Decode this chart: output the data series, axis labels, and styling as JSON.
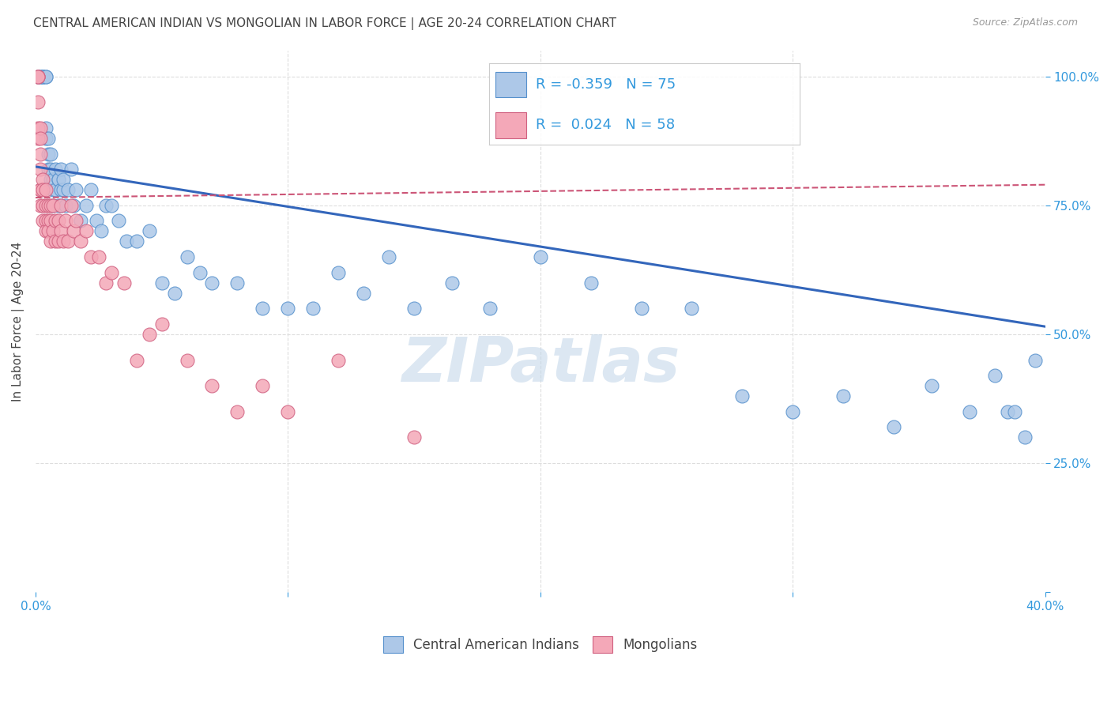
{
  "title": "CENTRAL AMERICAN INDIAN VS MONGOLIAN IN LABOR FORCE | AGE 20-24 CORRELATION CHART",
  "source": "Source: ZipAtlas.com",
  "ylabel": "In Labor Force | Age 20-24",
  "xlim": [
    0.0,
    0.4
  ],
  "ylim": [
    0.0,
    1.05
  ],
  "yticks": [
    0.0,
    0.25,
    0.5,
    0.75,
    1.0
  ],
  "ytick_labels": [
    "",
    "25.0%",
    "50.0%",
    "75.0%",
    "100.0%"
  ],
  "xticks": [
    0.0,
    0.1,
    0.2,
    0.3,
    0.4
  ],
  "xtick_labels": [
    "0.0%",
    "",
    "",
    "",
    "40.0%"
  ],
  "blue_R": -0.359,
  "blue_N": 75,
  "pink_R": 0.024,
  "pink_N": 58,
  "blue_color": "#adc8e8",
  "pink_color": "#f4a8b8",
  "blue_edge_color": "#5590cc",
  "pink_edge_color": "#d06080",
  "blue_line_color": "#3366bb",
  "pink_line_color": "#cc5577",
  "grid_color": "#dddddd",
  "grid_style": "--",
  "title_color": "#444444",
  "axis_label_color": "#444444",
  "tick_color": "#3399dd",
  "watermark_color": "#c5d8ea",
  "legend_blue_label": "Central American Indians",
  "legend_pink_label": "Mongolians",
  "blue_x": [
    0.001,
    0.002,
    0.002,
    0.003,
    0.003,
    0.003,
    0.004,
    0.004,
    0.004,
    0.004,
    0.005,
    0.005,
    0.005,
    0.006,
    0.006,
    0.006,
    0.007,
    0.007,
    0.007,
    0.008,
    0.008,
    0.009,
    0.009,
    0.009,
    0.01,
    0.01,
    0.01,
    0.011,
    0.011,
    0.012,
    0.013,
    0.014,
    0.015,
    0.016,
    0.018,
    0.02,
    0.022,
    0.024,
    0.026,
    0.028,
    0.03,
    0.033,
    0.036,
    0.04,
    0.045,
    0.05,
    0.055,
    0.06,
    0.065,
    0.07,
    0.08,
    0.09,
    0.1,
    0.11,
    0.12,
    0.13,
    0.14,
    0.15,
    0.165,
    0.18,
    0.2,
    0.22,
    0.24,
    0.26,
    0.28,
    0.3,
    0.32,
    0.34,
    0.355,
    0.37,
    0.38,
    0.385,
    0.388,
    0.392,
    0.396
  ],
  "blue_y": [
    1.0,
    1.0,
    1.0,
    1.0,
    1.0,
    1.0,
    1.0,
    1.0,
    0.9,
    0.88,
    0.88,
    0.85,
    0.82,
    0.85,
    0.8,
    0.82,
    0.78,
    0.8,
    0.75,
    0.82,
    0.78,
    0.8,
    0.75,
    0.8,
    0.78,
    0.82,
    0.75,
    0.78,
    0.8,
    0.75,
    0.78,
    0.82,
    0.75,
    0.78,
    0.72,
    0.75,
    0.78,
    0.72,
    0.7,
    0.75,
    0.75,
    0.72,
    0.68,
    0.68,
    0.7,
    0.6,
    0.58,
    0.65,
    0.62,
    0.6,
    0.6,
    0.55,
    0.55,
    0.55,
    0.62,
    0.58,
    0.65,
    0.55,
    0.6,
    0.55,
    0.65,
    0.6,
    0.55,
    0.55,
    0.38,
    0.35,
    0.38,
    0.32,
    0.4,
    0.35,
    0.42,
    0.35,
    0.35,
    0.3,
    0.45
  ],
  "pink_x": [
    0.001,
    0.001,
    0.001,
    0.001,
    0.001,
    0.001,
    0.002,
    0.002,
    0.002,
    0.002,
    0.002,
    0.002,
    0.002,
    0.003,
    0.003,
    0.003,
    0.003,
    0.004,
    0.004,
    0.004,
    0.004,
    0.005,
    0.005,
    0.005,
    0.006,
    0.006,
    0.006,
    0.007,
    0.007,
    0.008,
    0.008,
    0.009,
    0.009,
    0.01,
    0.01,
    0.011,
    0.012,
    0.013,
    0.014,
    0.015,
    0.016,
    0.018,
    0.02,
    0.022,
    0.025,
    0.028,
    0.03,
    0.035,
    0.04,
    0.045,
    0.05,
    0.06,
    0.07,
    0.08,
    0.09,
    0.1,
    0.12,
    0.15
  ],
  "pink_y": [
    1.0,
    1.0,
    1.0,
    0.95,
    0.9,
    0.88,
    0.9,
    0.88,
    0.85,
    0.82,
    0.78,
    0.78,
    0.75,
    0.8,
    0.78,
    0.75,
    0.72,
    0.78,
    0.75,
    0.72,
    0.7,
    0.75,
    0.72,
    0.7,
    0.75,
    0.72,
    0.68,
    0.75,
    0.7,
    0.72,
    0.68,
    0.72,
    0.68,
    0.75,
    0.7,
    0.68,
    0.72,
    0.68,
    0.75,
    0.7,
    0.72,
    0.68,
    0.7,
    0.65,
    0.65,
    0.6,
    0.62,
    0.6,
    0.45,
    0.5,
    0.52,
    0.45,
    0.4,
    0.35,
    0.4,
    0.35,
    0.45,
    0.3
  ],
  "blue_trend_x": [
    0.0,
    0.4
  ],
  "blue_trend_y": [
    0.825,
    0.515
  ],
  "pink_trend_x": [
    0.0,
    0.4
  ],
  "pink_trend_y": [
    0.765,
    0.79
  ]
}
